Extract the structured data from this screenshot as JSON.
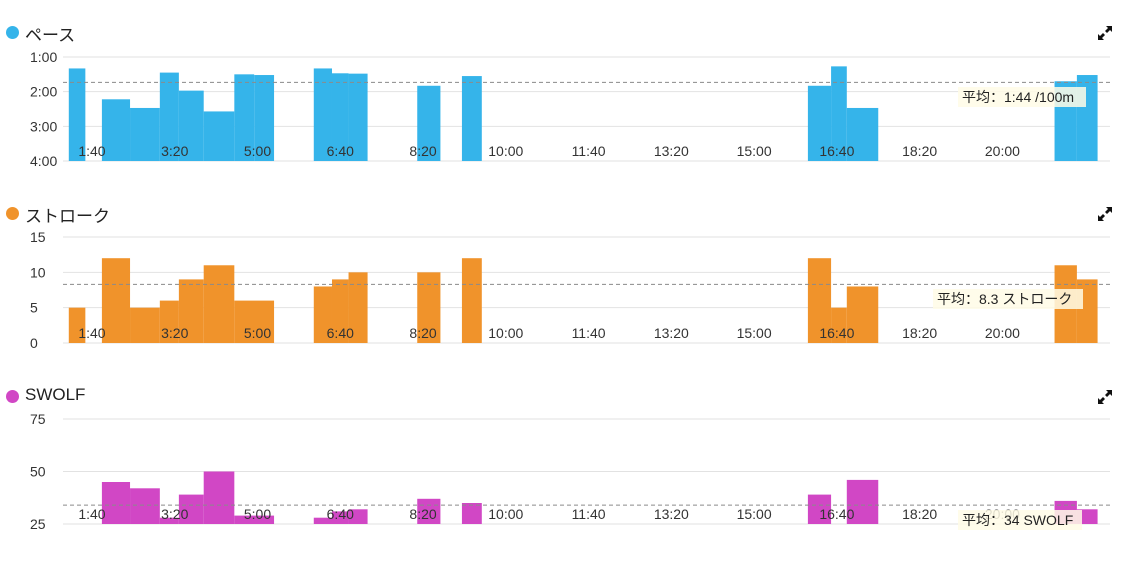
{
  "panels": [
    {
      "id": "pace",
      "title": "ペース",
      "color": "#35b4ea",
      "chart_data": {
        "type": "bar",
        "y_reversed": true,
        "ylim": [
          1,
          4
        ],
        "yticks": [
          1,
          2,
          3,
          4
        ],
        "ytick_labels": [
          "1:00",
          "2:00",
          "3:00",
          "4:00"
        ],
        "xlim": [
          65,
          1330
        ],
        "xticks": [
          100,
          200,
          300,
          400,
          500,
          600,
          700,
          800,
          900,
          1000,
          1100,
          1200
        ],
        "xtick_labels": [
          "1:40",
          "3:20",
          "5:00",
          "6:40",
          "8:20",
          "10:00",
          "11:40",
          "13:20",
          "15:00",
          "16:40",
          "18:20",
          "20:00"
        ],
        "average": 1.733,
        "average_label": "平均：1:44 /100m",
        "bars": [
          {
            "x0": 72,
            "x1": 92,
            "y": 1.33
          },
          {
            "x0": 112,
            "x1": 146,
            "y": 2.22
          },
          {
            "x0": 146,
            "x1": 182,
            "y": 2.47
          },
          {
            "x0": 182,
            "x1": 205,
            "y": 1.45
          },
          {
            "x0": 205,
            "x1": 235,
            "y": 1.97
          },
          {
            "x0": 235,
            "x1": 272,
            "y": 2.57
          },
          {
            "x0": 272,
            "x1": 296,
            "y": 1.5
          },
          {
            "x0": 296,
            "x1": 320,
            "y": 1.52
          },
          {
            "x0": 368,
            "x1": 390,
            "y": 1.33
          },
          {
            "x0": 390,
            "x1": 410,
            "y": 1.47
          },
          {
            "x0": 410,
            "x1": 433,
            "y": 1.48
          },
          {
            "x0": 493,
            "x1": 521,
            "y": 1.83
          },
          {
            "x0": 547,
            "x1": 571,
            "y": 1.55
          },
          {
            "x0": 965,
            "x1": 993,
            "y": 1.83
          },
          {
            "x0": 993,
            "x1": 1012,
            "y": 1.27
          },
          {
            "x0": 1012,
            "x1": 1050,
            "y": 2.47
          },
          {
            "x0": 1263,
            "x1": 1290,
            "y": 1.7
          },
          {
            "x0": 1290,
            "x1": 1315,
            "y": 1.52
          }
        ]
      }
    },
    {
      "id": "stroke",
      "title": "ストローク",
      "color": "#f0932b",
      "chart_data": {
        "type": "bar",
        "y_reversed": false,
        "ylim": [
          0,
          15
        ],
        "yticks": [
          0,
          5,
          10,
          15
        ],
        "ytick_labels": [
          "0",
          "5",
          "10",
          "15"
        ],
        "xlim": [
          65,
          1330
        ],
        "xticks": [
          100,
          200,
          300,
          400,
          500,
          600,
          700,
          800,
          900,
          1000,
          1100,
          1200
        ],
        "xtick_labels": [
          "1:40",
          "3:20",
          "5:00",
          "6:40",
          "8:20",
          "10:00",
          "11:40",
          "13:20",
          "15:00",
          "16:40",
          "18:20",
          "20:00"
        ],
        "average": 8.3,
        "average_label": "平均：8.3 ストローク",
        "bars": [
          {
            "x0": 72,
            "x1": 92,
            "y": 5
          },
          {
            "x0": 112,
            "x1": 146,
            "y": 12
          },
          {
            "x0": 146,
            "x1": 182,
            "y": 5
          },
          {
            "x0": 182,
            "x1": 205,
            "y": 6
          },
          {
            "x0": 205,
            "x1": 235,
            "y": 9
          },
          {
            "x0": 235,
            "x1": 272,
            "y": 11
          },
          {
            "x0": 272,
            "x1": 320,
            "y": 6
          },
          {
            "x0": 368,
            "x1": 390,
            "y": 8
          },
          {
            "x0": 390,
            "x1": 410,
            "y": 9
          },
          {
            "x0": 410,
            "x1": 433,
            "y": 10
          },
          {
            "x0": 493,
            "x1": 521,
            "y": 10
          },
          {
            "x0": 547,
            "x1": 571,
            "y": 12
          },
          {
            "x0": 965,
            "x1": 993,
            "y": 12
          },
          {
            "x0": 993,
            "x1": 1012,
            "y": 5
          },
          {
            "x0": 1012,
            "x1": 1050,
            "y": 8
          },
          {
            "x0": 1263,
            "x1": 1290,
            "y": 11
          },
          {
            "x0": 1290,
            "x1": 1315,
            "y": 9
          }
        ]
      }
    },
    {
      "id": "swolf",
      "title": "SWOLF",
      "color": "#d147c5",
      "chart_data": {
        "type": "bar",
        "y_reversed": false,
        "ylim": [
          25,
          75
        ],
        "yticks": [
          25,
          50,
          75
        ],
        "ytick_labels": [
          "25",
          "50",
          "75"
        ],
        "xlim": [
          65,
          1330
        ],
        "xticks": [
          100,
          200,
          300,
          400,
          500,
          600,
          700,
          800,
          900,
          1000,
          1100,
          1200
        ],
        "xtick_labels": [
          "1:40",
          "3:20",
          "5:00",
          "6:40",
          "8:20",
          "10:00",
          "11:40",
          "13:20",
          "15:00",
          "16:40",
          "18:20",
          "20:00"
        ],
        "average": 34,
        "average_label": "平均：34 SWOLF",
        "bars": [
          {
            "x0": 112,
            "x1": 146,
            "y": 45
          },
          {
            "x0": 146,
            "x1": 182,
            "y": 42
          },
          {
            "x0": 182,
            "x1": 205,
            "y": 28
          },
          {
            "x0": 205,
            "x1": 235,
            "y": 39
          },
          {
            "x0": 235,
            "x1": 272,
            "y": 50
          },
          {
            "x0": 272,
            "x1": 320,
            "y": 29
          },
          {
            "x0": 368,
            "x1": 390,
            "y": 28
          },
          {
            "x0": 390,
            "x1": 410,
            "y": 31
          },
          {
            "x0": 410,
            "x1": 433,
            "y": 32
          },
          {
            "x0": 493,
            "x1": 521,
            "y": 37
          },
          {
            "x0": 547,
            "x1": 571,
            "y": 35
          },
          {
            "x0": 965,
            "x1": 993,
            "y": 39
          },
          {
            "x0": 1012,
            "x1": 1050,
            "y": 46
          },
          {
            "x0": 1263,
            "x1": 1290,
            "y": 36
          },
          {
            "x0": 1290,
            "x1": 1315,
            "y": 32
          }
        ]
      }
    }
  ]
}
